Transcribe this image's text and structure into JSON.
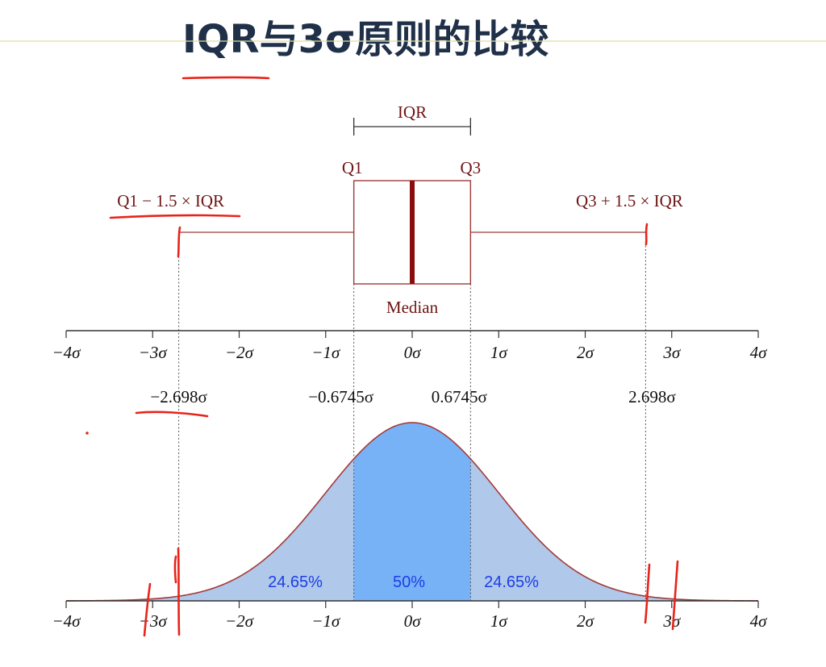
{
  "slide": {
    "title": "IQR与3σ原则的比较",
    "colors": {
      "title": "#1f3048",
      "accent_line": "#e0dca0",
      "box_plot": "#a03a3a",
      "median": "#8a0d0d",
      "tails_fill": "#b0c8ea",
      "center_fill": "#78b2f6",
      "curve": "#a33b3b",
      "percent_text": "#1d3ee6",
      "ink": "#e8241a"
    }
  },
  "box_plot": {
    "iqr_label": "IQR",
    "q1_label": "Q1",
    "q3_label": "Q3",
    "lower_whisker_label": "Q1 − 1.5 × IQR",
    "upper_whisker_label": "Q3 + 1.5 × IQR",
    "median_label": "Median",
    "q1": -0.6745,
    "median": 0,
    "q3": 0.6745,
    "lower_fence": -2.698,
    "upper_fence": 2.698
  },
  "axis": {
    "min": -4,
    "max": 4,
    "ticks": [
      -4,
      -3,
      -2,
      -1,
      0,
      1,
      2,
      3,
      4
    ],
    "tick_labels": [
      "−4σ",
      "−3σ",
      "−2σ",
      "−1σ",
      "0σ",
      "1σ",
      "2σ",
      "3σ",
      "4σ"
    ]
  },
  "reference_values": [
    {
      "value": -2.698,
      "label": "−2.698σ"
    },
    {
      "value": -0.6745,
      "label": "−0.6745σ"
    },
    {
      "value": 0.6745,
      "label": "0.6745σ"
    },
    {
      "value": 2.698,
      "label": "2.698σ"
    }
  ],
  "distribution": {
    "type": "normal",
    "mean": 0,
    "sd": 1,
    "regions": [
      {
        "from": -2.698,
        "to": -0.6745,
        "percent": "24.65%"
      },
      {
        "from": -0.6745,
        "to": 0.6745,
        "percent": "50%"
      },
      {
        "from": 0.6745,
        "to": 2.698,
        "percent": "24.65%"
      }
    ]
  }
}
